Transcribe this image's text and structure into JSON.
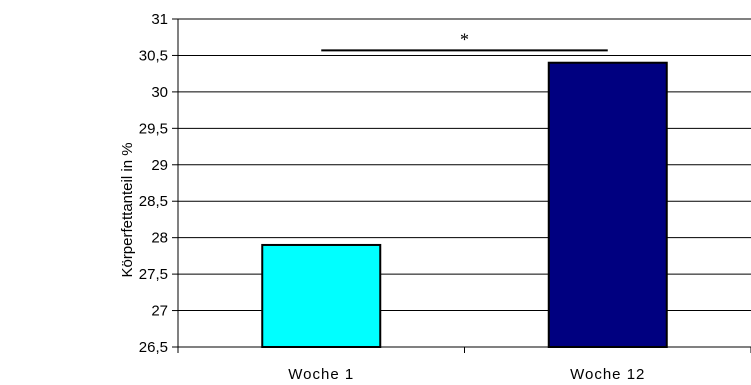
{
  "chart_data": {
    "type": "bar",
    "categories": [
      "Woche 1",
      "Woche 12"
    ],
    "values": [
      27.9,
      30.4
    ],
    "colors": [
      "#00FFFF",
      "#000080"
    ],
    "ylabel": "Körperfettanteil in %",
    "xlabel": "",
    "title": "",
    "ylim": [
      26.5,
      31
    ],
    "yticks": [
      26.5,
      27,
      27.5,
      28,
      28.5,
      29,
      29.5,
      30,
      30.5,
      31
    ],
    "ytick_labels": [
      "26,5",
      "27",
      "27,5",
      "28",
      "28,5",
      "29",
      "29,5",
      "30",
      "30,5",
      "31"
    ],
    "grid": true,
    "annotation": {
      "text": "*",
      "y": 30.57
    }
  }
}
